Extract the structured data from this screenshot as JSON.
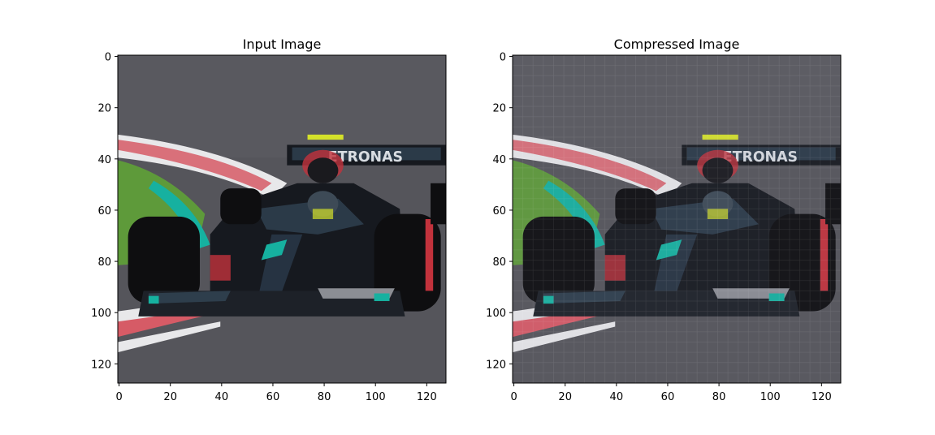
{
  "chart_data": [
    {
      "type": "image",
      "title": "Input Image",
      "xlabel": "",
      "ylabel": "",
      "xlim": [
        0,
        127
      ],
      "ylim": [
        127,
        0
      ],
      "xticks": [
        0,
        20,
        40,
        60,
        80,
        100,
        120
      ],
      "yticks": [
        0,
        20,
        40,
        60,
        80,
        100,
        120
      ],
      "image_description_icon": "f1-car-photo-icon"
    },
    {
      "type": "image",
      "title": "Compressed Image",
      "xlabel": "",
      "ylabel": "",
      "xlim": [
        0,
        127
      ],
      "ylim": [
        127,
        0
      ],
      "xticks": [
        0,
        20,
        40,
        60,
        80,
        100,
        120
      ],
      "yticks": [
        0,
        20,
        40,
        60,
        80,
        100,
        120
      ],
      "image_description_icon": "f1-car-photo-compressed-icon"
    }
  ],
  "car_text": "ETRONAS",
  "colors": {
    "track": "#55555b",
    "curb_red": "#d65b66",
    "curb_white": "#e8e8ea",
    "grass": "#5e9a3a",
    "teal": "#16b1a0",
    "car_body": "#16191f",
    "tire": "#0e0e10",
    "accent_red": "#c2323c",
    "yellow": "#d4e12a"
  }
}
